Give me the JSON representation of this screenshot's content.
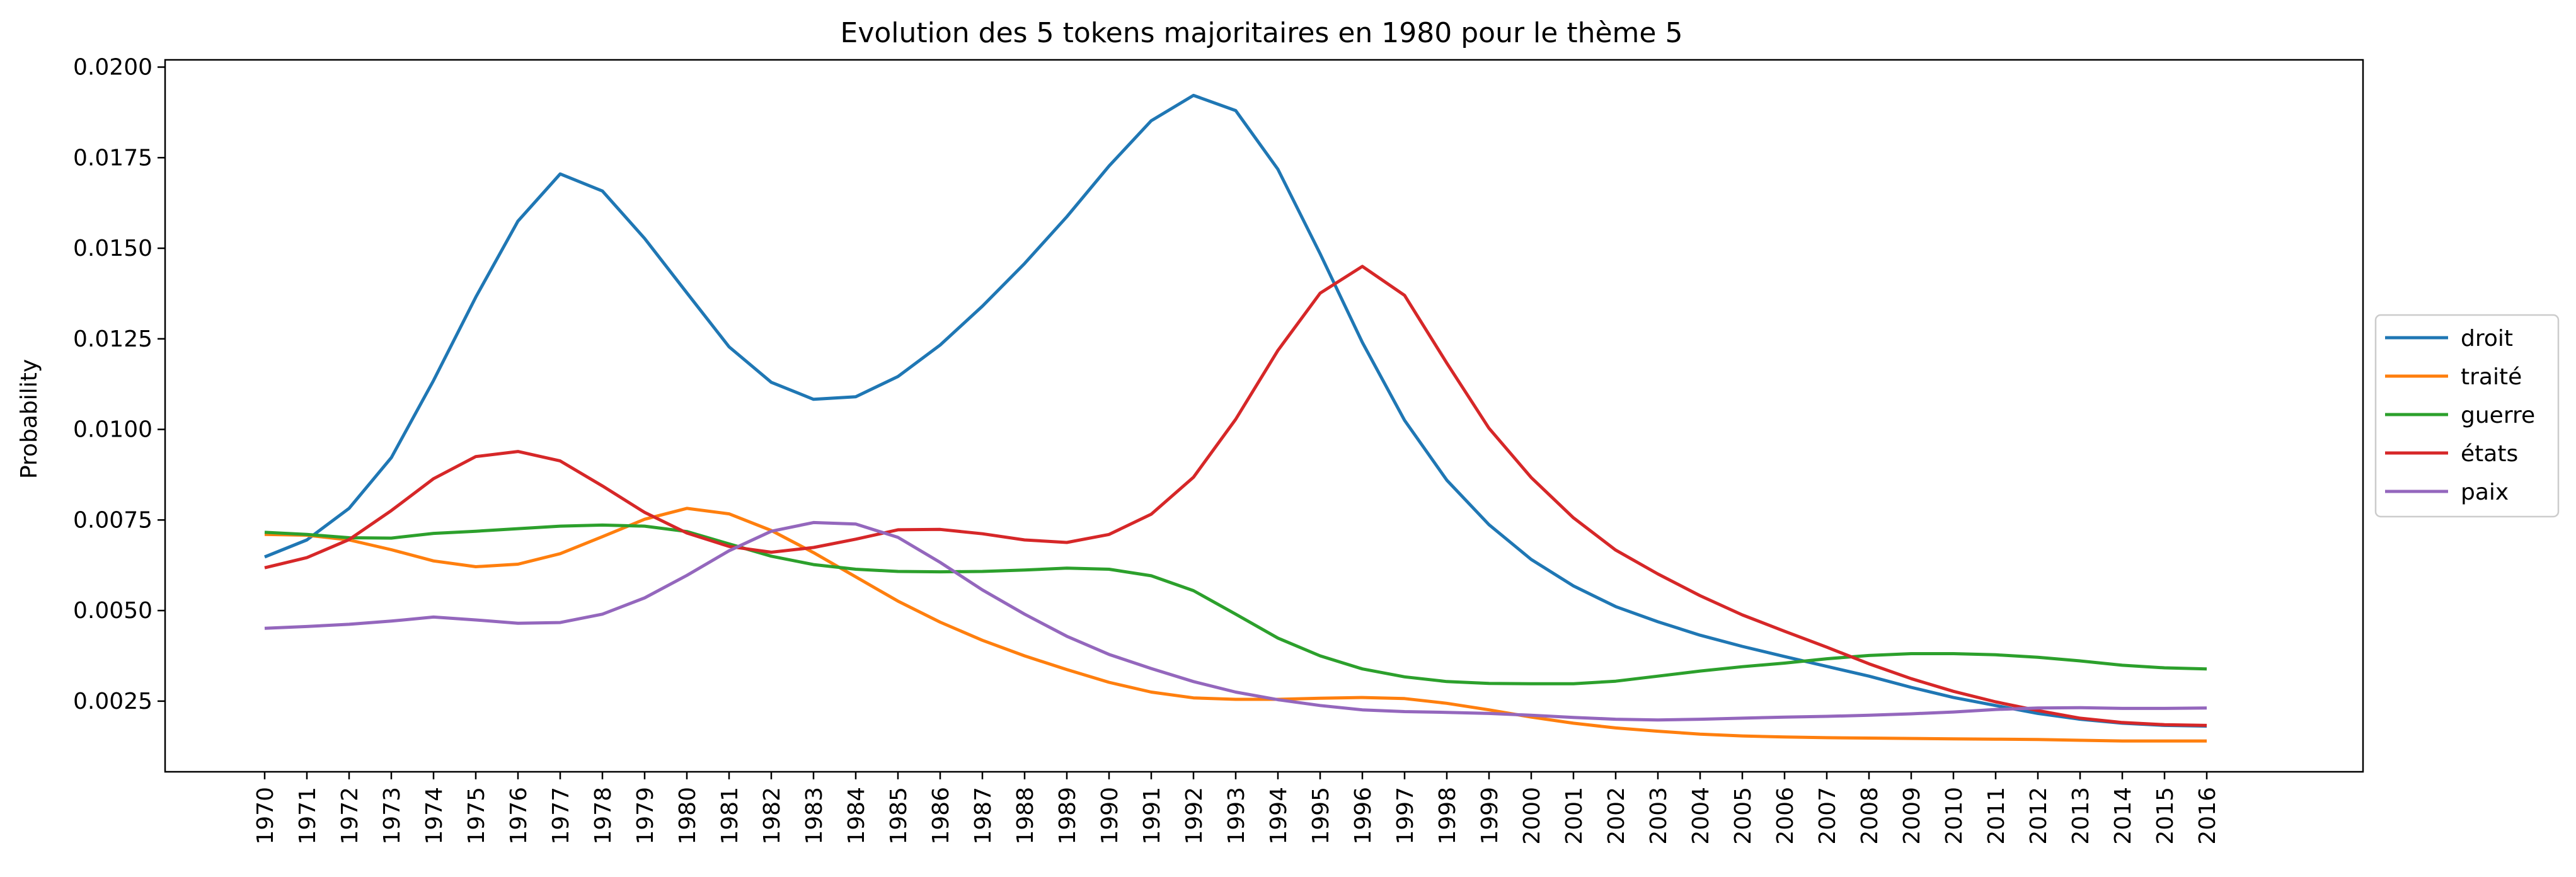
{
  "chart_data": {
    "type": "line",
    "title": "Evolution des 5 tokens majoritaires en 1980 pour le thème 5",
    "xlabel": "",
    "ylabel": "Probability",
    "ylim": [
      0.00055,
      0.0202
    ],
    "yticks": [
      "0.0025",
      "0.0050",
      "0.0075",
      "0.0100",
      "0.0125",
      "0.0150",
      "0.0175",
      "0.0200"
    ],
    "grid": false,
    "legend_position": "center-right outside",
    "x": [
      "1970",
      "1971",
      "1972",
      "1973",
      "1974",
      "1975",
      "1976",
      "1977",
      "1978",
      "1979",
      "1980",
      "1981",
      "1982",
      "1983",
      "1984",
      "1985",
      "1986",
      "1987",
      "1988",
      "1989",
      "1990",
      "1991",
      "1992",
      "1993",
      "1994",
      "1995",
      "1996",
      "1997",
      "1998",
      "1999",
      "2000",
      "2001",
      "2002",
      "2003",
      "2004",
      "2005",
      "2006",
      "2007",
      "2008",
      "2009",
      "2010",
      "2011",
      "2012",
      "2013",
      "2014",
      "2015",
      "2016"
    ],
    "series": [
      {
        "name": "droit",
        "color": "#1f77b4",
        "values": [
          0.00648,
          0.00695,
          0.00782,
          0.00922,
          0.01135,
          0.01365,
          0.01575,
          0.01705,
          0.01658,
          0.01527,
          0.01377,
          0.01228,
          0.0113,
          0.01083,
          0.0109,
          0.01146,
          0.01233,
          0.0134,
          0.01458,
          0.01587,
          0.01727,
          0.01852,
          0.01922,
          0.0188,
          0.01718,
          0.01485,
          0.0124,
          0.01025,
          0.0086,
          0.00737,
          0.00641,
          0.00568,
          0.00511,
          0.00469,
          0.00432,
          0.00401,
          0.00373,
          0.00346,
          0.00319,
          0.00288,
          0.0026,
          0.00238,
          0.00216,
          0.002,
          0.00189,
          0.00183,
          0.00181
        ]
      },
      {
        "name": "traité",
        "color": "#ff7f0e",
        "values": [
          0.0071,
          0.00708,
          0.00695,
          0.00668,
          0.00637,
          0.00621,
          0.00628,
          0.00657,
          0.00704,
          0.00752,
          0.00782,
          0.00767,
          0.00721,
          0.0066,
          0.00593,
          0.00526,
          0.00468,
          0.00418,
          0.00375,
          0.00337,
          0.00302,
          0.00275,
          0.00259,
          0.00255,
          0.00255,
          0.00258,
          0.0026,
          0.00257,
          0.00244,
          0.00226,
          0.00206,
          0.00189,
          0.00176,
          0.00167,
          0.00159,
          0.00154,
          0.00151,
          0.00149,
          0.00148,
          0.00147,
          0.00146,
          0.00145,
          0.00144,
          0.00142,
          0.0014,
          0.0014,
          0.0014
        ]
      },
      {
        "name": "guerre",
        "color": "#2ca02c",
        "values": [
          0.00716,
          0.0071,
          0.00701,
          0.007,
          0.00713,
          0.00719,
          0.00726,
          0.00733,
          0.00736,
          0.00733,
          0.00718,
          0.00684,
          0.0065,
          0.00627,
          0.00614,
          0.00608,
          0.00607,
          0.00608,
          0.00612,
          0.00617,
          0.00614,
          0.00596,
          0.00555,
          0.0049,
          0.00424,
          0.00375,
          0.00339,
          0.00317,
          0.00304,
          0.00299,
          0.00298,
          0.00298,
          0.00305,
          0.00319,
          0.00333,
          0.00345,
          0.00355,
          0.00367,
          0.00376,
          0.00381,
          0.00381,
          0.00378,
          0.00371,
          0.00361,
          0.00349,
          0.00342,
          0.00339
        ]
      },
      {
        "name": "états",
        "color": "#d62728",
        "values": [
          0.00618,
          0.00646,
          0.00696,
          0.00776,
          0.00864,
          0.00925,
          0.00939,
          0.00913,
          0.00844,
          0.00771,
          0.00714,
          0.00677,
          0.00661,
          0.00674,
          0.00697,
          0.00723,
          0.00724,
          0.00712,
          0.00695,
          0.00688,
          0.0071,
          0.00766,
          0.00868,
          0.01028,
          0.01218,
          0.01376,
          0.0145,
          0.0137,
          0.01183,
          0.01003,
          0.00867,
          0.00756,
          0.00667,
          0.00601,
          0.00541,
          0.00488,
          0.00443,
          0.00399,
          0.00353,
          0.00312,
          0.00277,
          0.00248,
          0.00224,
          0.00203,
          0.00191,
          0.00185,
          0.00183
        ]
      },
      {
        "name": "paix",
        "color": "#9467bd",
        "values": [
          0.00451,
          0.00456,
          0.00462,
          0.00471,
          0.00482,
          0.00474,
          0.00465,
          0.00467,
          0.0049,
          0.00535,
          0.00597,
          0.00665,
          0.00719,
          0.00743,
          0.00739,
          0.00702,
          0.00633,
          0.00557,
          0.0049,
          0.00429,
          0.00379,
          0.0034,
          0.00304,
          0.00275,
          0.00254,
          0.00238,
          0.00226,
          0.00221,
          0.00219,
          0.00216,
          0.00211,
          0.00205,
          0.002,
          0.00198,
          0.002,
          0.00203,
          0.00206,
          0.00208,
          0.00211,
          0.00215,
          0.0022,
          0.00227,
          0.00231,
          0.00232,
          0.0023,
          0.0023,
          0.00231
        ]
      }
    ]
  }
}
